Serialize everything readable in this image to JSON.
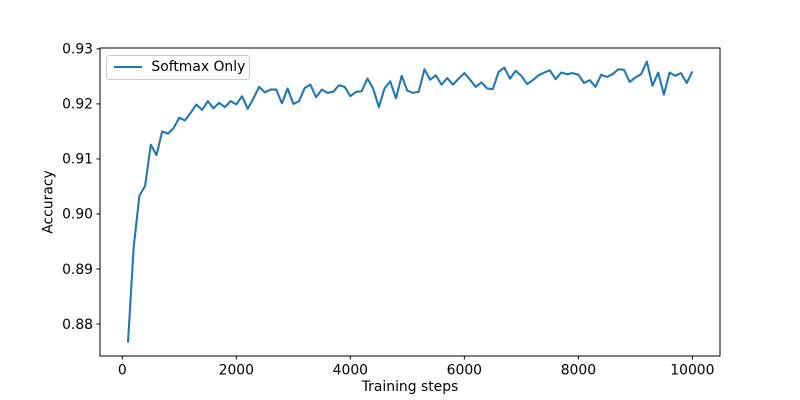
{
  "chart_data": {
    "type": "line",
    "title": "",
    "xlabel": "Training steps",
    "ylabel": "Accuracy",
    "xlim": [
      -391,
      10484
    ],
    "ylim": [
      0.87418,
      0.93016
    ],
    "x_ticks": [
      0,
      2000,
      4000,
      6000,
      8000,
      10000
    ],
    "x_tick_labels": [
      "0",
      "2000",
      "4000",
      "6000",
      "8000",
      "10000"
    ],
    "y_ticks": [
      0.88,
      0.89,
      0.9,
      0.91,
      0.92,
      0.93
    ],
    "y_tick_labels": [
      "0.88",
      "0.89",
      "0.90",
      "0.91",
      "0.92",
      "0.93"
    ],
    "grid": "off",
    "legend_position": "upper left",
    "series": [
      {
        "name": "Softmax Only",
        "color": "#1f77b4",
        "x": [
          100,
          200,
          300,
          400,
          500,
          600,
          700,
          800,
          900,
          1000,
          1100,
          1200,
          1300,
          1400,
          1500,
          1600,
          1700,
          1800,
          1900,
          2000,
          2100,
          2200,
          2300,
          2400,
          2500,
          2600,
          2700,
          2800,
          2900,
          3000,
          3100,
          3200,
          3300,
          3400,
          3500,
          3600,
          3700,
          3800,
          3900,
          4000,
          4100,
          4200,
          4300,
          4400,
          4500,
          4600,
          4700,
          4800,
          4900,
          5000,
          5100,
          5200,
          5300,
          5400,
          5500,
          5600,
          5700,
          5800,
          5900,
          6000,
          6100,
          6200,
          6300,
          6400,
          6500,
          6600,
          6700,
          6800,
          6900,
          7000,
          7100,
          7200,
          7300,
          7400,
          7500,
          7600,
          7700,
          7800,
          7900,
          8000,
          8100,
          8200,
          8300,
          8400,
          8500,
          8600,
          8700,
          8800,
          8900,
          9000,
          9100,
          9200,
          9300,
          9400,
          9500,
          9600,
          9700,
          9800,
          9900,
          10000
        ],
        "y": [
          0.8766,
          0.894,
          0.9033,
          0.9051,
          0.9126,
          0.9107,
          0.915,
          0.9146,
          0.9156,
          0.9175,
          0.917,
          0.9184,
          0.9199,
          0.9189,
          0.9205,
          0.9192,
          0.9202,
          0.9194,
          0.9205,
          0.9199,
          0.9214,
          0.9191,
          0.921,
          0.9231,
          0.9221,
          0.9226,
          0.9226,
          0.9201,
          0.9228,
          0.92,
          0.9205,
          0.9229,
          0.9235,
          0.9212,
          0.9226,
          0.922,
          0.9222,
          0.9234,
          0.9231,
          0.9214,
          0.9222,
          0.9223,
          0.9246,
          0.9228,
          0.9194,
          0.9228,
          0.9241,
          0.921,
          0.9251,
          0.9224,
          0.922,
          0.9222,
          0.9263,
          0.9244,
          0.9252,
          0.9235,
          0.9247,
          0.9235,
          0.9246,
          0.9256,
          0.9244,
          0.9231,
          0.9239,
          0.9228,
          0.9227,
          0.9258,
          0.9266,
          0.9246,
          0.926,
          0.9251,
          0.9236,
          0.9243,
          0.9252,
          0.9257,
          0.9261,
          0.9245,
          0.9257,
          0.9254,
          0.9256,
          0.9253,
          0.9238,
          0.9243,
          0.9231,
          0.9253,
          0.9249,
          0.9254,
          0.9263,
          0.9262,
          0.924,
          0.9248,
          0.9254,
          0.9277,
          0.9233,
          0.9257,
          0.9217,
          0.9257,
          0.9251,
          0.9256,
          0.9238,
          0.9259
        ]
      }
    ]
  },
  "legend": {
    "label": "Softmax Only"
  },
  "colors": {
    "line": "#1f77b4",
    "axes": "#000000",
    "legend_border": "#cccccc",
    "background": "#ffffff"
  }
}
